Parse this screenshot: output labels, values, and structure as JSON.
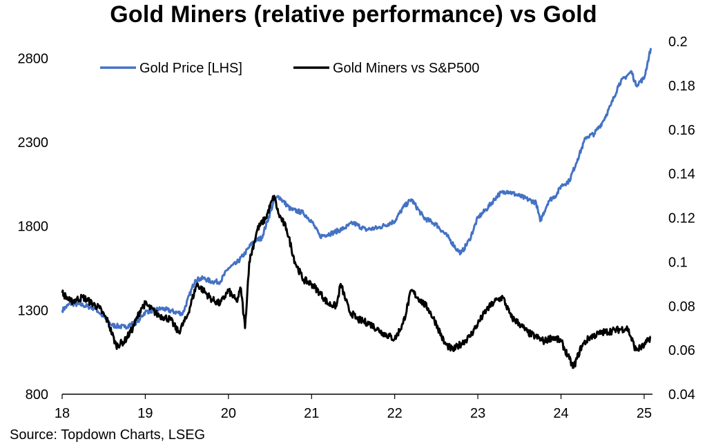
{
  "chart_data": {
    "type": "line",
    "title": "Gold Miners (relative performance) vs Gold",
    "source": "Source: Topdown Charts, LSEG",
    "x_ticks": [
      "18",
      "19",
      "20",
      "21",
      "22",
      "23",
      "24",
      "25"
    ],
    "xlim": [
      2018.0,
      2025.1
    ],
    "left_axis": {
      "ylim": [
        800,
        2900
      ],
      "ticks": [
        "800",
        "1300",
        "1800",
        "2300",
        "2800"
      ]
    },
    "right_axis": {
      "ylim": [
        0.04,
        0.2
      ],
      "ticks": [
        "0.04",
        "0.06",
        "0.08",
        "0.1",
        "0.12",
        "0.14",
        "0.16",
        "0.18",
        "0.2"
      ]
    },
    "grid": false,
    "legend_position": "top",
    "series": [
      {
        "name": "Gold Price [LHS]",
        "axis": "left",
        "color": "#4472C4",
        "x": [
          2018.0,
          2018.1,
          2018.25,
          2018.4,
          2018.6,
          2018.75,
          2018.9,
          2019.0,
          2019.2,
          2019.35,
          2019.45,
          2019.6,
          2019.7,
          2019.8,
          2019.9,
          2020.0,
          2020.1,
          2020.2,
          2020.3,
          2020.4,
          2020.55,
          2020.6,
          2020.75,
          2020.9,
          2021.0,
          2021.1,
          2021.25,
          2021.4,
          2021.5,
          2021.65,
          2021.8,
          2022.0,
          2022.1,
          2022.2,
          2022.35,
          2022.5,
          2022.65,
          2022.75,
          2022.8,
          2022.9,
          2023.0,
          2023.1,
          2023.25,
          2023.35,
          2023.5,
          2023.7,
          2023.75,
          2023.85,
          2023.95,
          2024.0,
          2024.1,
          2024.2,
          2024.3,
          2024.4,
          2024.5,
          2024.6,
          2024.7,
          2024.8,
          2024.85,
          2024.9,
          2025.0,
          2025.08
        ],
        "values": [
          1300,
          1340,
          1330,
          1310,
          1210,
          1200,
          1230,
          1290,
          1310,
          1290,
          1280,
          1480,
          1490,
          1470,
          1470,
          1550,
          1580,
          1640,
          1710,
          1730,
          1950,
          1980,
          1900,
          1880,
          1830,
          1740,
          1760,
          1790,
          1820,
          1780,
          1790,
          1830,
          1910,
          1960,
          1850,
          1810,
          1730,
          1660,
          1640,
          1720,
          1850,
          1900,
          1990,
          2010,
          1980,
          1940,
          1830,
          1950,
          1990,
          2040,
          2070,
          2200,
          2330,
          2350,
          2420,
          2520,
          2650,
          2700,
          2720,
          2640,
          2680,
          2860
        ]
      },
      {
        "name": "Gold Miners vs S&P500",
        "axis": "right",
        "color": "#000000",
        "x": [
          2018.0,
          2018.1,
          2018.25,
          2018.45,
          2018.55,
          2018.65,
          2018.75,
          2018.85,
          2018.95,
          2019.0,
          2019.15,
          2019.3,
          2019.4,
          2019.5,
          2019.62,
          2019.7,
          2019.8,
          2019.9,
          2020.0,
          2020.1,
          2020.15,
          2020.2,
          2020.25,
          2020.35,
          2020.45,
          2020.55,
          2020.6,
          2020.7,
          2020.8,
          2020.9,
          2021.0,
          2021.1,
          2021.2,
          2021.3,
          2021.35,
          2021.45,
          2021.55,
          2021.7,
          2021.85,
          2022.0,
          2022.1,
          2022.2,
          2022.3,
          2022.4,
          2022.5,
          2022.6,
          2022.7,
          2022.8,
          2022.9,
          2023.0,
          2023.1,
          2023.2,
          2023.3,
          2023.4,
          2023.5,
          2023.6,
          2023.7,
          2023.8,
          2023.9,
          2024.0,
          2024.1,
          2024.15,
          2024.25,
          2024.35,
          2024.5,
          2024.65,
          2024.8,
          2024.9,
          2025.0,
          2025.08
        ],
        "values": [
          0.086,
          0.082,
          0.084,
          0.079,
          0.073,
          0.062,
          0.064,
          0.07,
          0.079,
          0.081,
          0.076,
          0.074,
          0.068,
          0.075,
          0.09,
          0.087,
          0.083,
          0.081,
          0.087,
          0.082,
          0.088,
          0.07,
          0.1,
          0.115,
          0.12,
          0.13,
          0.122,
          0.115,
          0.1,
          0.092,
          0.09,
          0.086,
          0.081,
          0.08,
          0.09,
          0.078,
          0.074,
          0.072,
          0.068,
          0.065,
          0.072,
          0.087,
          0.083,
          0.079,
          0.072,
          0.063,
          0.06,
          0.063,
          0.066,
          0.072,
          0.078,
          0.082,
          0.084,
          0.075,
          0.072,
          0.068,
          0.066,
          0.064,
          0.066,
          0.064,
          0.056,
          0.052,
          0.062,
          0.066,
          0.068,
          0.069,
          0.07,
          0.06,
          0.062,
          0.066
        ]
      }
    ]
  }
}
